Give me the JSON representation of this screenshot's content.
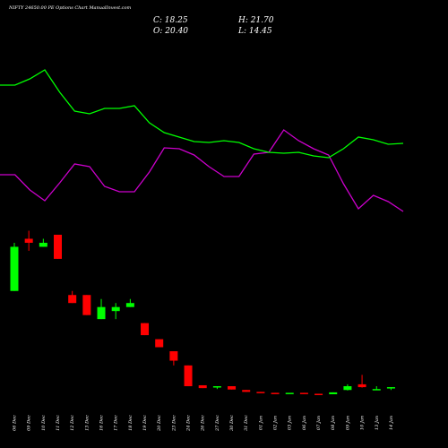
{
  "chart_data": {
    "type": "candlestick",
    "title": "NIFTY 24650.00 PE Options  Chart ManualInvest.com",
    "ohlc_labels": {
      "close": "C: 18.25",
      "high": "H: 21.70",
      "open": "O: 20.40",
      "low": "L: 14.45"
    },
    "x_labels": [
      "06 Dec",
      "09 Dec",
      "10 Dec",
      "11 Dec",
      "12 Dec",
      "13 Dec",
      "16 Dec",
      "17 Dec",
      "18 Dec",
      "19 Dec",
      "20 Dec",
      "23 Dec",
      "24 Dec",
      "26 Dec",
      "27 Dec",
      "30 Dec",
      "31 Dec",
      "01 Jan",
      "02 Jan",
      "03 Jan",
      "06 Jan",
      "07 Jan",
      "08 Jan",
      "09 Jan",
      "10 Jan",
      "13 Jan",
      "14 Jan"
    ],
    "candles": [
      {
        "o": 20,
        "h": 32,
        "l": 20,
        "c": 31
      },
      {
        "o": 33,
        "h": 35,
        "l": 30,
        "c": 32
      },
      {
        "o": 31,
        "h": 33,
        "l": 31,
        "c": 32
      },
      {
        "o": 34,
        "h": 34,
        "l": 28,
        "c": 28
      },
      {
        "o": 19,
        "h": 20,
        "l": 17,
        "c": 17
      },
      {
        "o": 19,
        "h": 19,
        "l": 14,
        "c": 14
      },
      {
        "o": 13,
        "h": 18,
        "l": 13,
        "c": 16
      },
      {
        "o": 15,
        "h": 17,
        "l": 13,
        "c": 16
      },
      {
        "o": 16,
        "h": 18,
        "l": 16,
        "c": 17
      },
      {
        "o": 12,
        "h": 12,
        "l": 9,
        "c": 9
      },
      {
        "o": 8,
        "h": 8,
        "l": 6,
        "c": 6
      },
      {
        "o": 5,
        "h": 5,
        "l": 3.5,
        "c": 4
      },
      {
        "o": 3.5,
        "h": 3.5,
        "l": 1.3,
        "c": 1.3
      },
      {
        "o": 1.4,
        "h": 1.4,
        "l": 1.1,
        "c": 1.1
      },
      {
        "o": 1.2,
        "h": 1.3,
        "l": 1.0,
        "c": 1.3
      },
      {
        "o": 1.3,
        "h": 1.3,
        "l": 0.95,
        "c": 0.95
      },
      {
        "o": 0.9,
        "h": 0.9,
        "l": 0.7,
        "c": 0.7
      },
      {
        "o": 0.7,
        "h": 0.7,
        "l": 0.6,
        "c": 0.6
      },
      {
        "o": 0.6,
        "h": 0.6,
        "l": 0.55,
        "c": 0.55
      },
      {
        "o": 0.55,
        "h": 0.55,
        "l": 0.5,
        "c": 0.6
      },
      {
        "o": 0.6,
        "h": 0.6,
        "l": 0.5,
        "c": 0.5
      },
      {
        "o": 0.5,
        "h": 0.5,
        "l": 0.45,
        "c": 0.45
      },
      {
        "o": 0.45,
        "h": 0.65,
        "l": 0.45,
        "c": 0.65
      },
      {
        "o": 0.9,
        "h": 1.5,
        "l": 0.85,
        "c": 1.3
      },
      {
        "o": 1.5,
        "h": 2.5,
        "l": 1.15,
        "c": 1.2
      },
      {
        "o": 1.0,
        "h": 1.3,
        "l": 0.97,
        "c": 1.0
      },
      {
        "o": 1.1,
        "h": 1.2,
        "l": 0.9,
        "c": 1.2
      }
    ],
    "green_line": [
      95,
      95,
      88,
      78,
      103,
      124,
      127,
      121,
      121,
      118,
      137,
      148,
      153,
      158,
      159,
      157,
      159,
      166,
      170,
      171,
      170,
      174,
      176,
      166,
      153,
      156,
      161,
      160
    ],
    "magenta_line": [
      195,
      195,
      212,
      224,
      204,
      183,
      186,
      208,
      214,
      214,
      192,
      165,
      166,
      173,
      186,
      197,
      197,
      172,
      170,
      145,
      157,
      166,
      173,
      205,
      233,
      218,
      225,
      236
    ],
    "colors": {
      "up": "#00ff00",
      "down": "#ff0000",
      "green_line": "#00ff00",
      "magenta_line": "#cc00cc",
      "background": "#000000",
      "text": "#ffffff"
    }
  }
}
